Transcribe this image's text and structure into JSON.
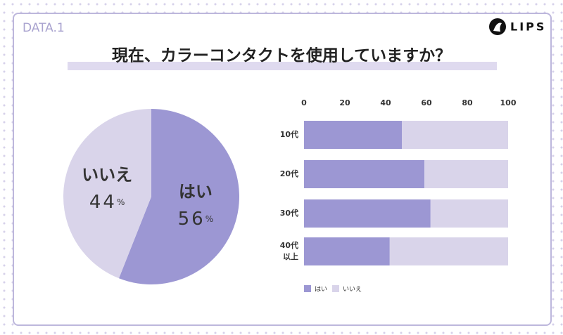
{
  "header": {
    "label": "DATA.1",
    "logo": "LIPS",
    "title": "現在、カラーコンタクトを使用していますか？"
  },
  "chart_data": [
    {
      "type": "pie",
      "categories": [
        "はい",
        "いいえ"
      ],
      "values": [
        56,
        44
      ],
      "unit": "%",
      "colors": [
        "#9c97d3",
        "#d9d4ea"
      ]
    },
    {
      "type": "stacked-barh",
      "categories": [
        "10代",
        "20代",
        "30代",
        "40代\n以上"
      ],
      "series": [
        {
          "name": "はい",
          "color": "#9c97d3",
          "values": [
            48,
            59,
            62,
            42
          ]
        },
        {
          "name": "いいえ",
          "color": "#d9d4ea",
          "values": [
            52,
            41,
            38,
            58
          ]
        }
      ],
      "xlim": [
        0,
        100
      ],
      "xticks": [
        0,
        20,
        40,
        60,
        80,
        100
      ]
    }
  ]
}
